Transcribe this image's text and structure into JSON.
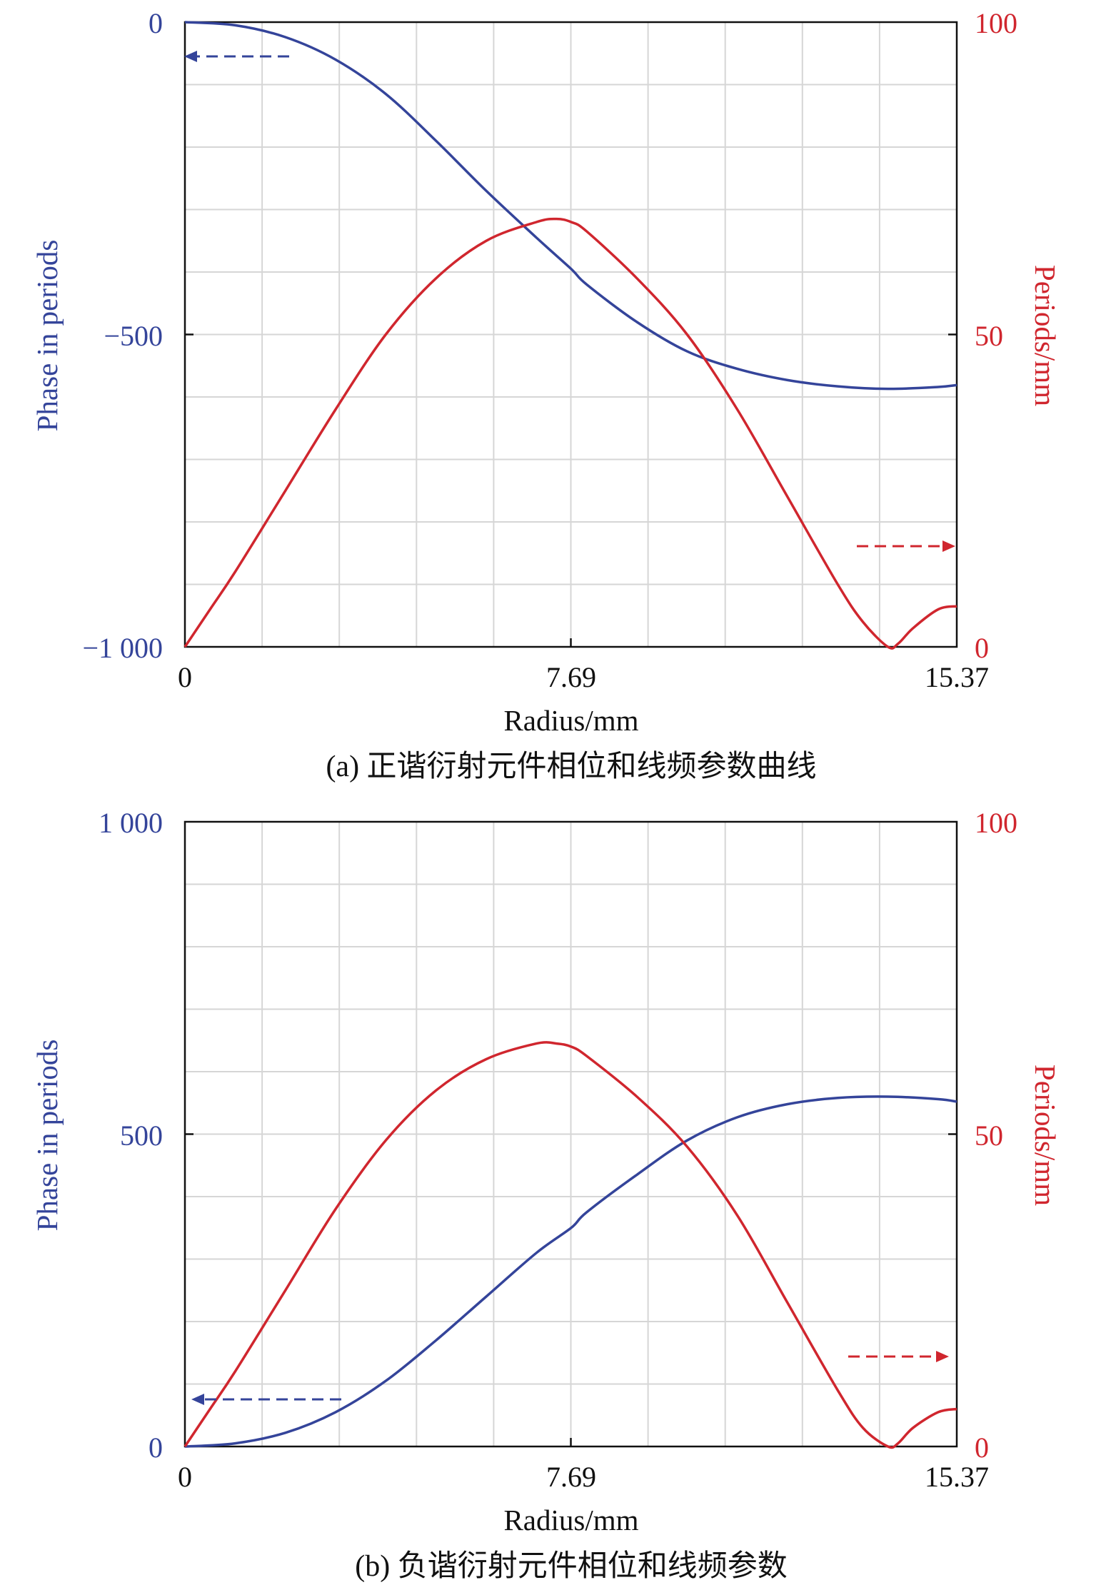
{
  "colors": {
    "phase": "#34449a",
    "frequency": "#d0262e",
    "grid": "#d6d6d6",
    "frame": "#111111",
    "text": "#111111"
  },
  "chart_data": [
    {
      "type": "line",
      "caption": "(a) 正谐衍射元件相位和线频参数曲线",
      "xlabel": "Radius/mm",
      "ylabel_left": "Phase in periods",
      "ylabel_right": "Periods/mm",
      "xlim": [
        0,
        15.37
      ],
      "ylim_left": [
        -1000,
        0
      ],
      "ylim_right": [
        0,
        100
      ],
      "x_ticks": [
        "0",
        "7.69",
        "15.37"
      ],
      "y_left_ticks": [
        "−1 000",
        "−500",
        "0"
      ],
      "y_right_ticks": [
        "0",
        "50",
        "100"
      ],
      "grid": true,
      "series": [
        {
          "axis": "left",
          "x": [
            0,
            1,
            2,
            3,
            4,
            5,
            6,
            7,
            7.69,
            8,
            9,
            10,
            11,
            12,
            13,
            14,
            15,
            15.37
          ],
          "y": [
            0,
            -5,
            -24,
            -60,
            -115,
            -190,
            -270,
            -345,
            -395,
            -420,
            -480,
            -527,
            -555,
            -573,
            -583,
            -587,
            -584,
            -581
          ]
        },
        {
          "axis": "right",
          "x": [
            0,
            0.5,
            1,
            2,
            3,
            4,
            5,
            6,
            7,
            7.4,
            7.69,
            8,
            9,
            10,
            11,
            12,
            13,
            13.5,
            14,
            14.2,
            14.5,
            15,
            15.37
          ],
          "y": [
            0,
            6,
            12,
            25,
            38,
            50,
            59,
            65,
            68,
            68.5,
            68,
            66.5,
            59,
            50,
            38,
            24,
            10,
            4,
            0,
            0.5,
            3,
            6,
            6.5
          ]
        }
      ],
      "annotations": [
        "dashed arrow pointing left: phase curve uses left axis",
        "dashed arrow pointing right: frequency curve uses right axis"
      ]
    },
    {
      "type": "line",
      "caption": "(b) 负谐衍射元件相位和线频参数",
      "xlabel": "Radius/mm",
      "ylabel_left": "Phase in periods",
      "ylabel_right": "Periods/mm",
      "xlim": [
        0,
        15.37
      ],
      "ylim_left": [
        0,
        1000
      ],
      "ylim_right": [
        0,
        100
      ],
      "x_ticks": [
        "0",
        "7.69",
        "15.37"
      ],
      "y_left_ticks": [
        "0",
        "500",
        "1 000"
      ],
      "y_right_ticks": [
        "0",
        "50",
        "100"
      ],
      "grid": true,
      "series": [
        {
          "axis": "left",
          "x": [
            0,
            1,
            2,
            3,
            4,
            5,
            6,
            7,
            7.69,
            8,
            9,
            10,
            11,
            12,
            13,
            14,
            15,
            15.37
          ],
          "y": [
            0,
            5,
            22,
            55,
            105,
            170,
            240,
            310,
            350,
            375,
            435,
            490,
            527,
            548,
            558,
            560,
            556,
            552
          ]
        },
        {
          "axis": "right",
          "x": [
            0,
            0.5,
            1,
            2,
            3,
            4,
            5,
            6,
            7,
            7.4,
            7.69,
            8,
            9,
            10,
            11,
            12,
            13,
            13.5,
            14,
            14.2,
            14.5,
            15,
            15.37
          ],
          "y": [
            0,
            6,
            12,
            25,
            38,
            49,
            57,
            62,
            64.5,
            64.5,
            64,
            62.5,
            56,
            48,
            37,
            23,
            9,
            3,
            0,
            0.5,
            3,
            5.5,
            6
          ]
        }
      ],
      "annotations": [
        "dashed arrow pointing left: phase curve uses left axis",
        "dashed arrow pointing right: frequency curve uses right axis"
      ]
    }
  ]
}
